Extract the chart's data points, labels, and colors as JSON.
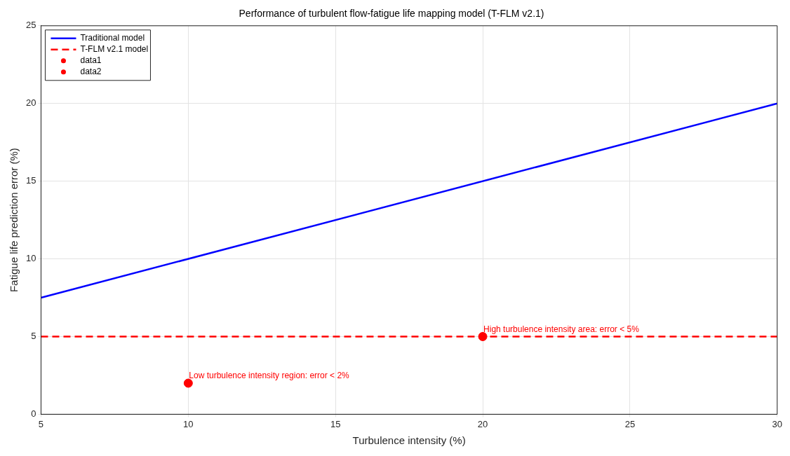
{
  "chart_data": {
    "type": "line",
    "title": "Performance of turbulent flow-fatigue life mapping model (T-FLM v2.1)",
    "xlabel": "Turbulence intensity (%)",
    "ylabel": "Fatigue life prediction error (%)",
    "series": [
      {
        "name": "Traditional model",
        "type": "line",
        "color": "#0000ff",
        "line_style": "solid",
        "marker": "none",
        "x": [
          5,
          30
        ],
        "values": [
          7.5,
          20
        ]
      },
      {
        "name": "T-FLM v2.1 model",
        "type": "line",
        "color": "#ff0000",
        "line_style": "dashed",
        "marker": "none",
        "x": [
          5,
          30
        ],
        "values": [
          5,
          5
        ]
      },
      {
        "name": "data1",
        "type": "scatter",
        "color": "#ff0000",
        "marker": "circle",
        "x": [
          10
        ],
        "values": [
          2
        ]
      },
      {
        "name": "data2",
        "type": "scatter",
        "color": "#ff0000",
        "marker": "circle",
        "x": [
          20
        ],
        "values": [
          5
        ]
      }
    ],
    "annotations": [
      {
        "text": "Low turbulence intensity region: error < 2%",
        "x": 10,
        "y": 2
      },
      {
        "text": "High turbulence intensity area: error < 5%",
        "x": 20,
        "y": 5
      }
    ],
    "xlim": [
      5,
      30
    ],
    "xticks": [
      5,
      10,
      15,
      20,
      25,
      30
    ],
    "ylim": [
      0,
      25
    ],
    "yticks": [
      0,
      5,
      10,
      15,
      20,
      25
    ],
    "grid": true,
    "legend": "top left"
  }
}
